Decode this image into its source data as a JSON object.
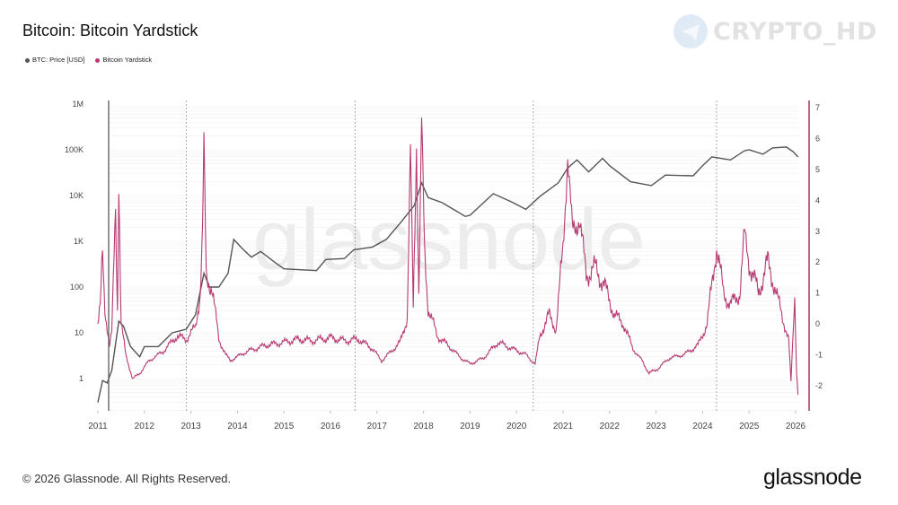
{
  "title": "Bitcoin: Bitcoin Yardstick",
  "legend": [
    {
      "label": "BTC: Price [USD]",
      "color": "#555555"
    },
    {
      "label": "Bitcoin Yardstick",
      "color": "#b83a73"
    }
  ],
  "watermark": {
    "text": "CRYPTO_HD",
    "icon": "telegram-icon"
  },
  "chart_watermark": "glassnode",
  "footer": "© 2026 Glassnode. All Rights Reserved.",
  "logo": "glassnode",
  "chart_data": {
    "type": "line",
    "title": "Bitcoin: Bitcoin Yardstick",
    "x_ticks": [
      "2011",
      "2012",
      "2013",
      "2014",
      "2015",
      "2016",
      "2017",
      "2018",
      "2019",
      "2020",
      "2021",
      "2022",
      "2023",
      "2024",
      "2025",
      "2026"
    ],
    "xlim": [
      2011,
      2026.1
    ],
    "y_left": {
      "scale": "log",
      "ticks": [
        "1",
        "10",
        "100",
        "1K",
        "10K",
        "100K",
        "1M"
      ],
      "range": [
        0.2,
        1000000
      ]
    },
    "y_right": {
      "scale": "linear",
      "ticks": [
        "-2",
        "-1",
        "0",
        "1",
        "2",
        "3",
        "4",
        "5",
        "6",
        "7"
      ],
      "range": [
        -2.8,
        7.1
      ]
    },
    "vertical_markers": [
      2012.9,
      2016.53,
      2020.36,
      2024.3
    ],
    "grid": true,
    "legend_position": "top-left",
    "series": [
      {
        "name": "BTC: Price [USD]",
        "axis": "left",
        "color": "#555555",
        "points": [
          [
            2011.0,
            0.3
          ],
          [
            2011.1,
            0.9
          ],
          [
            2011.2,
            0.8
          ],
          [
            2011.3,
            1.5
          ],
          [
            2011.45,
            18
          ],
          [
            2011.55,
            14
          ],
          [
            2011.7,
            5
          ],
          [
            2011.9,
            3
          ],
          [
            2012.0,
            5
          ],
          [
            2012.3,
            5
          ],
          [
            2012.6,
            10
          ],
          [
            2012.9,
            12
          ],
          [
            2013.1,
            25
          ],
          [
            2013.28,
            200
          ],
          [
            2013.4,
            100
          ],
          [
            2013.6,
            100
          ],
          [
            2013.8,
            200
          ],
          [
            2013.92,
            1100
          ],
          [
            2014.1,
            700
          ],
          [
            2014.3,
            450
          ],
          [
            2014.5,
            600
          ],
          [
            2014.8,
            350
          ],
          [
            2015.0,
            250
          ],
          [
            2015.3,
            240
          ],
          [
            2015.7,
            230
          ],
          [
            2015.9,
            400
          ],
          [
            2016.3,
            420
          ],
          [
            2016.5,
            650
          ],
          [
            2016.9,
            750
          ],
          [
            2017.2,
            1100
          ],
          [
            2017.5,
            2500
          ],
          [
            2017.8,
            6000
          ],
          [
            2017.96,
            19000
          ],
          [
            2018.1,
            9000
          ],
          [
            2018.4,
            7000
          ],
          [
            2018.9,
            3500
          ],
          [
            2019.0,
            3700
          ],
          [
            2019.5,
            11000
          ],
          [
            2019.9,
            7200
          ],
          [
            2020.2,
            5000
          ],
          [
            2020.5,
            9500
          ],
          [
            2020.9,
            19000
          ],
          [
            2021.1,
            40000
          ],
          [
            2021.3,
            60000
          ],
          [
            2021.55,
            33000
          ],
          [
            2021.85,
            65000
          ],
          [
            2022.0,
            45000
          ],
          [
            2022.45,
            20000
          ],
          [
            2022.9,
            16500
          ],
          [
            2023.2,
            28000
          ],
          [
            2023.8,
            27000
          ],
          [
            2024.0,
            45000
          ],
          [
            2024.2,
            70000
          ],
          [
            2024.6,
            60000
          ],
          [
            2024.9,
            95000
          ],
          [
            2025.0,
            100000
          ],
          [
            2025.3,
            80000
          ],
          [
            2025.5,
            110000
          ],
          [
            2025.8,
            115000
          ],
          [
            2025.95,
            90000
          ],
          [
            2026.05,
            70000
          ]
        ]
      },
      {
        "name": "Bitcoin Yardstick",
        "axis": "right",
        "color": "#b83a73",
        "points": [
          [
            2011.0,
            0
          ],
          [
            2011.05,
            0.5
          ],
          [
            2011.1,
            2.3
          ],
          [
            2011.15,
            0.5
          ],
          [
            2011.25,
            -0.7
          ],
          [
            2011.3,
            -0.3
          ],
          [
            2011.38,
            3.8
          ],
          [
            2011.42,
            0.5
          ],
          [
            2011.45,
            4.6
          ],
          [
            2011.5,
            0
          ],
          [
            2011.6,
            -1.0
          ],
          [
            2011.75,
            -1.8
          ],
          [
            2011.9,
            -1.6
          ],
          [
            2012.1,
            -1.2
          ],
          [
            2012.4,
            -0.9
          ],
          [
            2012.7,
            -0.4
          ],
          [
            2012.9,
            -0.5
          ],
          [
            2013.1,
            -0.1
          ],
          [
            2013.2,
            1
          ],
          [
            2013.25,
            3
          ],
          [
            2013.28,
            5.8
          ],
          [
            2013.33,
            1.5
          ],
          [
            2013.45,
            1.2
          ],
          [
            2013.6,
            -0.5
          ],
          [
            2013.75,
            -1.0
          ],
          [
            2013.85,
            -1.2
          ],
          [
            2013.95,
            -1.1
          ],
          [
            2014.2,
            -0.9
          ],
          [
            2014.6,
            -0.7
          ],
          [
            2015.0,
            -0.6
          ],
          [
            2015.3,
            -0.5
          ],
          [
            2015.6,
            -0.55
          ],
          [
            2016.0,
            -0.45
          ],
          [
            2016.3,
            -0.55
          ],
          [
            2016.6,
            -0.5
          ],
          [
            2016.9,
            -0.8
          ],
          [
            2017.1,
            -1.2
          ],
          [
            2017.3,
            -0.9
          ],
          [
            2017.5,
            -0.6
          ],
          [
            2017.65,
            0.2
          ],
          [
            2017.72,
            5.6
          ],
          [
            2017.78,
            0.5
          ],
          [
            2017.85,
            5.8
          ],
          [
            2017.9,
            1.0
          ],
          [
            2017.96,
            6.6
          ],
          [
            2018.02,
            2.5
          ],
          [
            2018.1,
            0.5
          ],
          [
            2018.3,
            -0.4
          ],
          [
            2018.6,
            -0.8
          ],
          [
            2018.8,
            -1.1
          ],
          [
            2019.0,
            -1.3
          ],
          [
            2019.3,
            -1.1
          ],
          [
            2019.6,
            -0.6
          ],
          [
            2019.9,
            -0.8
          ],
          [
            2020.2,
            -1.0
          ],
          [
            2020.4,
            -1.3
          ],
          [
            2020.5,
            -0.4
          ],
          [
            2020.7,
            0.3
          ],
          [
            2020.85,
            -0.2
          ],
          [
            2021.0,
            2.5
          ],
          [
            2021.1,
            5.4
          ],
          [
            2021.2,
            3.0
          ],
          [
            2021.35,
            3.4
          ],
          [
            2021.5,
            1.6
          ],
          [
            2021.7,
            1.8
          ],
          [
            2021.9,
            1.2
          ],
          [
            2022.1,
            0.3
          ],
          [
            2022.3,
            0
          ],
          [
            2022.5,
            -0.8
          ],
          [
            2022.7,
            -1.2
          ],
          [
            2022.85,
            -1.6
          ],
          [
            2023.0,
            -1.5
          ],
          [
            2023.3,
            -1.1
          ],
          [
            2023.6,
            -1.0
          ],
          [
            2023.9,
            -0.7
          ],
          [
            2024.1,
            0
          ],
          [
            2024.2,
            1.3
          ],
          [
            2024.3,
            2.5
          ],
          [
            2024.45,
            1.0
          ],
          [
            2024.6,
            0.6
          ],
          [
            2024.8,
            1.0
          ],
          [
            2024.9,
            2.9
          ],
          [
            2025.0,
            2.0
          ],
          [
            2025.2,
            1.0
          ],
          [
            2025.4,
            2.0
          ],
          [
            2025.55,
            1.2
          ],
          [
            2025.7,
            0.3
          ],
          [
            2025.85,
            -0.5
          ],
          [
            2025.9,
            -1.9
          ],
          [
            2025.98,
            0.9
          ],
          [
            2026.02,
            -1.5
          ],
          [
            2026.05,
            -2.3
          ]
        ]
      }
    ]
  }
}
